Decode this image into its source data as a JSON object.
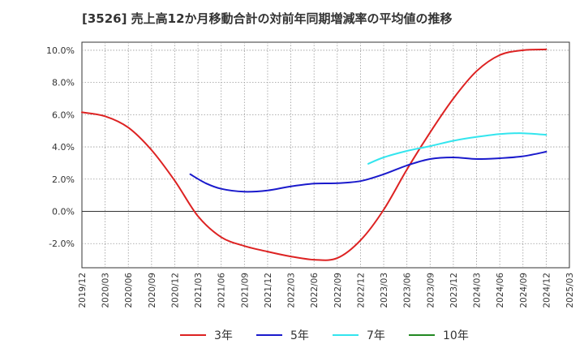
{
  "chart_data": {
    "type": "line",
    "title": "[3526]  売上高12か月移動合計の対前年同期増減率の平均値の推移",
    "xlabel": "",
    "ylabel": "",
    "ylim": [
      -3.5,
      10.5
    ],
    "y_ticks": [
      -2.0,
      0.0,
      2.0,
      4.0,
      6.0,
      8.0,
      10.0
    ],
    "y_tick_labels": [
      "-2.0%",
      "0.0%",
      "2.0%",
      "4.0%",
      "6.0%",
      "8.0%",
      "10.0%"
    ],
    "x_ticks": [
      "2019/12",
      "2020/03",
      "2020/06",
      "2020/09",
      "2020/12",
      "2021/03",
      "2021/06",
      "2021/09",
      "2021/12",
      "2022/03",
      "2022/06",
      "2022/09",
      "2022/12",
      "2023/03",
      "2023/06",
      "2023/09",
      "2023/12",
      "2024/03",
      "2024/06",
      "2024/09",
      "2024/12",
      "2025/03"
    ],
    "grid": true,
    "legend_position": "bottom",
    "series": [
      {
        "name": "3年",
        "color": "#dd2222",
        "points": [
          [
            "2019/12",
            6.15
          ],
          [
            "2020/03",
            5.9
          ],
          [
            "2020/06",
            5.2
          ],
          [
            "2020/09",
            3.8
          ],
          [
            "2020/12",
            1.9
          ],
          [
            "2021/03",
            -0.3
          ],
          [
            "2021/06",
            -1.6
          ],
          [
            "2021/09",
            -2.15
          ],
          [
            "2021/12",
            -2.5
          ],
          [
            "2022/03",
            -2.8
          ],
          [
            "2022/06",
            -3.0
          ],
          [
            "2022/09",
            -2.9
          ],
          [
            "2022/12",
            -1.8
          ],
          [
            "2023/03",
            0.1
          ],
          [
            "2023/06",
            2.6
          ],
          [
            "2023/09",
            4.9
          ],
          [
            "2023/12",
            7.0
          ],
          [
            "2024/03",
            8.7
          ],
          [
            "2024/06",
            9.7
          ],
          [
            "2024/09",
            10.0
          ],
          [
            "2024/12",
            10.05
          ]
        ]
      },
      {
        "name": "5年",
        "color": "#1a1acc",
        "points": [
          [
            "2021/02",
            2.3
          ],
          [
            "2021/04",
            1.75
          ],
          [
            "2021/06",
            1.4
          ],
          [
            "2021/09",
            1.22
          ],
          [
            "2021/12",
            1.3
          ],
          [
            "2022/03",
            1.55
          ],
          [
            "2022/06",
            1.72
          ],
          [
            "2022/09",
            1.75
          ],
          [
            "2022/12",
            1.88
          ],
          [
            "2023/03",
            2.3
          ],
          [
            "2023/06",
            2.85
          ],
          [
            "2023/09",
            3.25
          ],
          [
            "2023/12",
            3.35
          ],
          [
            "2024/03",
            3.25
          ],
          [
            "2024/06",
            3.3
          ],
          [
            "2024/09",
            3.42
          ],
          [
            "2024/12",
            3.7
          ]
        ]
      },
      {
        "name": "7年",
        "color": "#33e5ee",
        "points": [
          [
            "2023/01",
            2.95
          ],
          [
            "2023/03",
            3.35
          ],
          [
            "2023/06",
            3.75
          ],
          [
            "2023/09",
            4.05
          ],
          [
            "2023/12",
            4.38
          ],
          [
            "2024/03",
            4.62
          ],
          [
            "2024/06",
            4.8
          ],
          [
            "2024/09",
            4.85
          ],
          [
            "2024/12",
            4.75
          ]
        ]
      },
      {
        "name": "10年",
        "color": "#228822",
        "points": []
      }
    ]
  }
}
